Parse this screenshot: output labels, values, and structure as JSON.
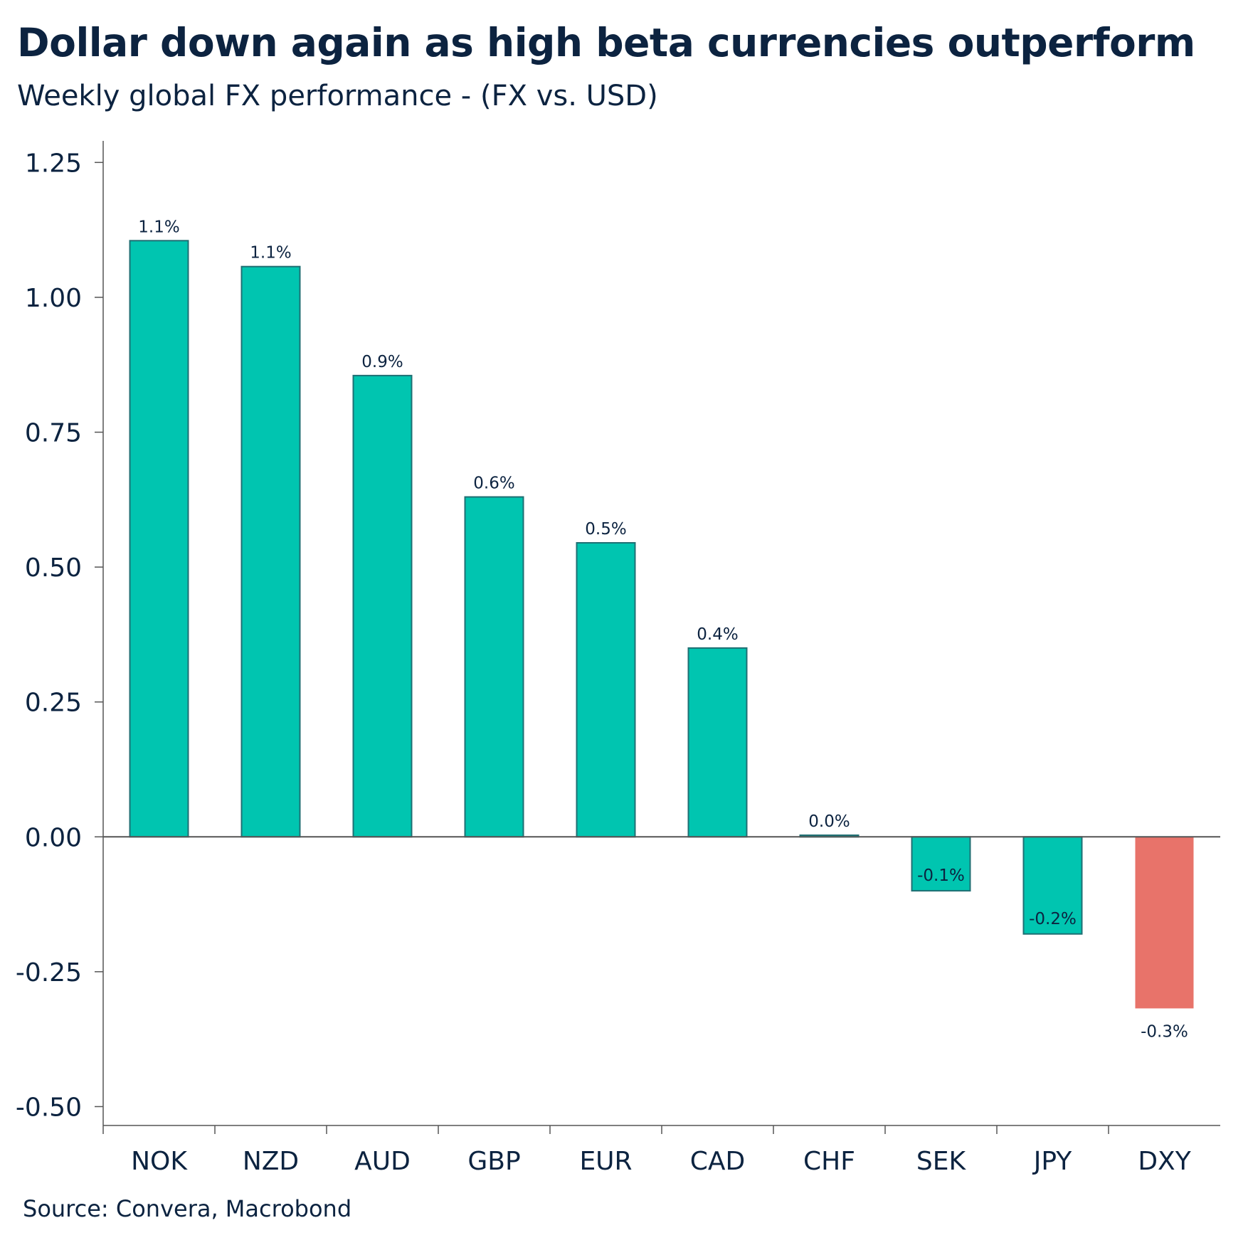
{
  "header": {
    "title": "Dollar down again as high beta currencies outperform",
    "subtitle": "Weekly global FX performance - (FX vs. USD)"
  },
  "footer": {
    "source": "Source: Convera, Macrobond"
  },
  "colors": {
    "positive": "#00c5b0",
    "positive_border": "#1f6f73",
    "highlight": "#e8736a",
    "axis": "#555555",
    "text": "#0c2340"
  },
  "chart_data": {
    "type": "bar",
    "title": "Dollar down again as high beta currencies outperform",
    "subtitle": "Weekly global FX performance - (FX vs. USD)",
    "xlabel": "",
    "ylabel": "",
    "ylim": [
      -0.535,
      1.29
    ],
    "yticks": [
      1.25,
      1.0,
      0.75,
      0.5,
      0.25,
      0.0,
      -0.25,
      -0.5
    ],
    "ytick_labels": [
      "1.25",
      "1.00",
      "0.75",
      "0.50",
      "0.25",
      "0.00",
      "-0.25",
      "-0.50"
    ],
    "categories": [
      "NOK",
      "NZD",
      "AUD",
      "GBP",
      "EUR",
      "CAD",
      "CHF",
      "SEK",
      "JPY",
      "DXY"
    ],
    "values": [
      1.105,
      1.057,
      0.855,
      0.63,
      0.545,
      0.35,
      0.003,
      -0.1,
      -0.18,
      -0.318
    ],
    "data_labels": [
      "1.1%",
      "1.1%",
      "0.9%",
      "0.6%",
      "0.5%",
      "0.4%",
      "0.0%",
      "-0.1%",
      "-0.2%",
      "-0.3%"
    ],
    "highlight": [
      false,
      false,
      false,
      false,
      false,
      false,
      false,
      false,
      false,
      true
    ],
    "grid": false,
    "legend": "none"
  }
}
